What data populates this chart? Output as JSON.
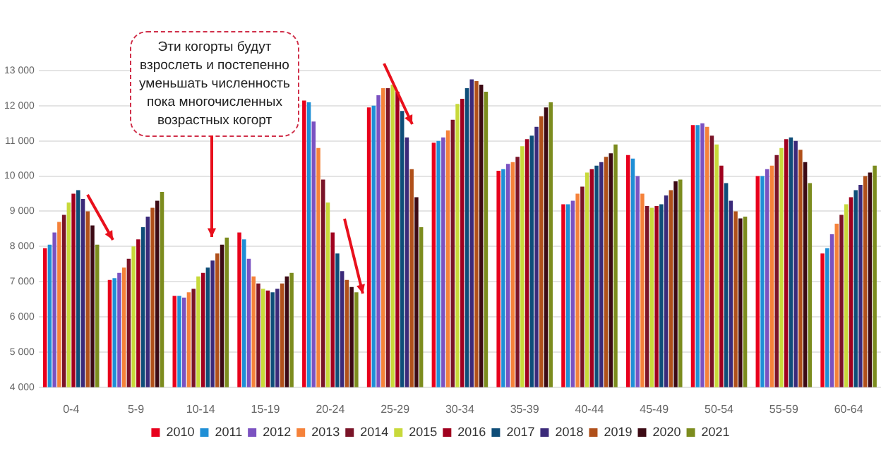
{
  "chart_data": {
    "type": "bar",
    "categories": [
      "0-4",
      "5-9",
      "10-14",
      "15-19",
      "20-24",
      "25-29",
      "30-34",
      "35-39",
      "40-44",
      "45-49",
      "50-54",
      "55-59",
      "60-64"
    ],
    "series": [
      {
        "name": "2010",
        "color": "#e8001c",
        "values": [
          7950,
          7050,
          6600,
          8400,
          12150,
          11950,
          10950,
          10150,
          9200,
          10600,
          11450,
          10000,
          7800
        ]
      },
      {
        "name": "2011",
        "color": "#1f8fd6",
        "values": [
          8050,
          7100,
          6600,
          8200,
          12100,
          12000,
          11000,
          10200,
          9200,
          10500,
          11450,
          10000,
          7950
        ]
      },
      {
        "name": "2012",
        "color": "#7b52c1",
        "values": [
          8400,
          7250,
          6550,
          7650,
          11550,
          12300,
          11100,
          10350,
          9300,
          10000,
          11500,
          10200,
          8350
        ]
      },
      {
        "name": "2013",
        "color": "#f5823a",
        "values": [
          8700,
          7400,
          6700,
          7150,
          10800,
          12500,
          11300,
          10400,
          9500,
          9500,
          11400,
          10300,
          8650
        ]
      },
      {
        "name": "2014",
        "color": "#7a1428",
        "values": [
          8900,
          7650,
          6800,
          6950,
          9900,
          12500,
          11600,
          10550,
          9700,
          9150,
          11150,
          10600,
          8900
        ]
      },
      {
        "name": "2015",
        "color": "#c8d93a",
        "values": [
          9250,
          8000,
          7150,
          6800,
          9250,
          12600,
          12050,
          10850,
          10100,
          9100,
          10900,
          10800,
          9200
        ]
      },
      {
        "name": "2016",
        "color": "#a0001e",
        "values": [
          9500,
          8200,
          7250,
          6750,
          8400,
          12400,
          12200,
          11050,
          10200,
          9150,
          10300,
          11050,
          9400
        ]
      },
      {
        "name": "2017",
        "color": "#0e4d78",
        "values": [
          9600,
          8550,
          7400,
          6700,
          7800,
          11850,
          12500,
          11150,
          10300,
          9200,
          9800,
          11100,
          9600
        ]
      },
      {
        "name": "2018",
        "color": "#3b2a7a",
        "values": [
          9350,
          8850,
          7600,
          6800,
          7300,
          11100,
          12750,
          11400,
          10400,
          9450,
          9300,
          11000,
          9750
        ]
      },
      {
        "name": "2019",
        "color": "#b0501a",
        "values": [
          9000,
          9100,
          7800,
          6950,
          7050,
          10200,
          12700,
          11700,
          10550,
          9600,
          9000,
          10750,
          10000
        ]
      },
      {
        "name": "2020",
        "color": "#3c0a14",
        "values": [
          8600,
          9300,
          8050,
          7150,
          6850,
          9400,
          12600,
          11950,
          10650,
          9850,
          8800,
          10400,
          10100
        ]
      },
      {
        "name": "2021",
        "color": "#7c8c1e",
        "values": [
          8050,
          9550,
          8250,
          7250,
          6700,
          8550,
          12400,
          12100,
          10900,
          9900,
          8850,
          9800,
          10300
        ]
      }
    ],
    "ylim": [
      4000,
      13000
    ],
    "yticks": [
      {
        "value": 4000,
        "label": "4 000"
      },
      {
        "value": 5000,
        "label": "5 000"
      },
      {
        "value": 6000,
        "label": "6 000"
      },
      {
        "value": 7000,
        "label": "7 000"
      },
      {
        "value": 8000,
        "label": "8 000"
      },
      {
        "value": 9000,
        "label": "9 000"
      },
      {
        "value": 10000,
        "label": "10 000"
      },
      {
        "value": 11000,
        "label": "11 000"
      },
      {
        "value": 12000,
        "label": "12 000"
      },
      {
        "value": 13000,
        "label": "13 000"
      }
    ],
    "grid": "y",
    "legend": "bottom",
    "annotations": [
      "Эти когорты будут взрослеть и постепенно уменьшать численность пока многочисленных возрастных когорт"
    ]
  }
}
